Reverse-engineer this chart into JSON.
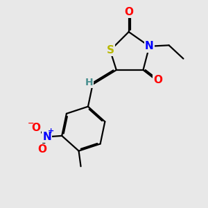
{
  "background_color": "#e8e8e8",
  "atom_colors": {
    "S": "#b8b800",
    "N": "#0000FF",
    "O": "#FF0000",
    "C": "#000000",
    "H": "#4A9090"
  },
  "bond_color": "#000000",
  "bond_width": 1.6,
  "figsize": [
    3.0,
    3.0
  ],
  "dpi": 100
}
